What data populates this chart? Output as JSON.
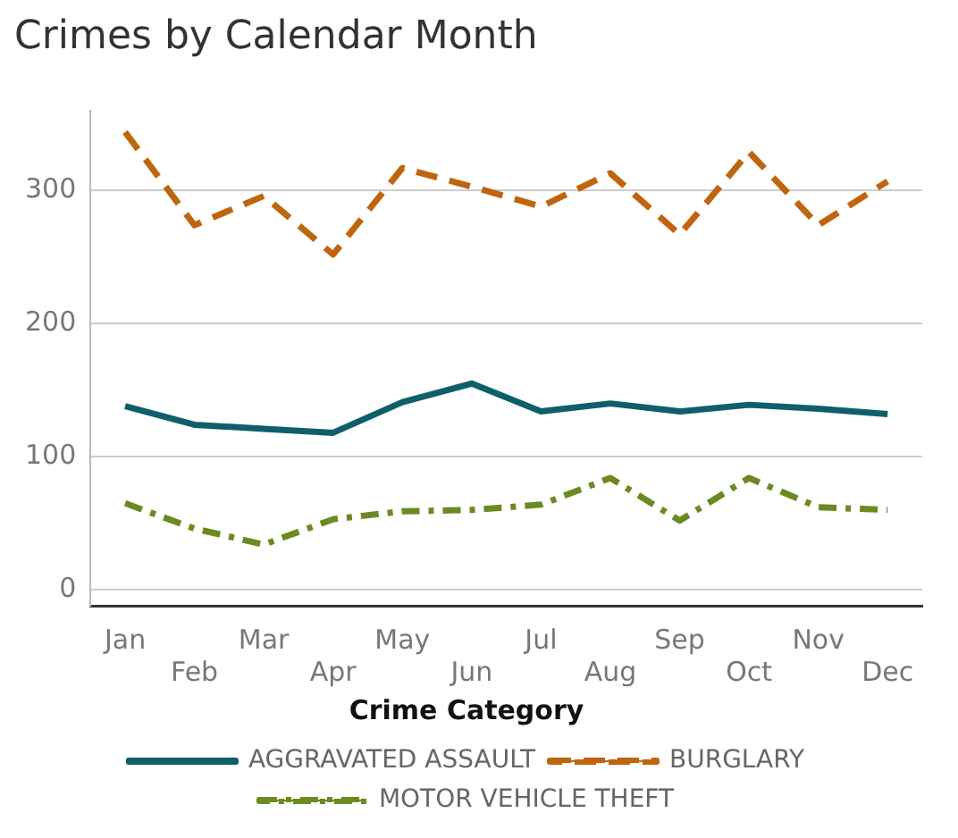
{
  "chart_data": {
    "type": "line",
    "title": "Crimes by Calendar Month",
    "categories": [
      "Jan",
      "Feb",
      "Mar",
      "Apr",
      "May",
      "Jun",
      "Jul",
      "Aug",
      "Sep",
      "Oct",
      "Nov",
      "Dec"
    ],
    "series": [
      {
        "name": "AGGRAVATED ASSAULT",
        "color": "#0e5f6b",
        "line_style": "solid",
        "values": [
          138,
          124,
          121,
          118,
          141,
          155,
          134,
          140,
          134,
          139,
          136,
          132
        ]
      },
      {
        "name": "BURGLARY",
        "color": "#c0650f",
        "line_style": "dashed",
        "values": [
          344,
          274,
          296,
          252,
          317,
          303,
          288,
          313,
          267,
          329,
          274,
          307
        ]
      },
      {
        "name": "MOTOR VEHICLE THEFT",
        "color": "#6b8a22",
        "line_style": "dashdot",
        "values": [
          65,
          46,
          34,
          53,
          59,
          60,
          64,
          84,
          52,
          84,
          62,
          60
        ]
      }
    ],
    "legend_title": "Crime Category",
    "legend": "bottom",
    "yticks": [
      0,
      100,
      200,
      300
    ],
    "ylim": [
      -12,
      360
    ],
    "grid": "y",
    "marker": "none"
  }
}
